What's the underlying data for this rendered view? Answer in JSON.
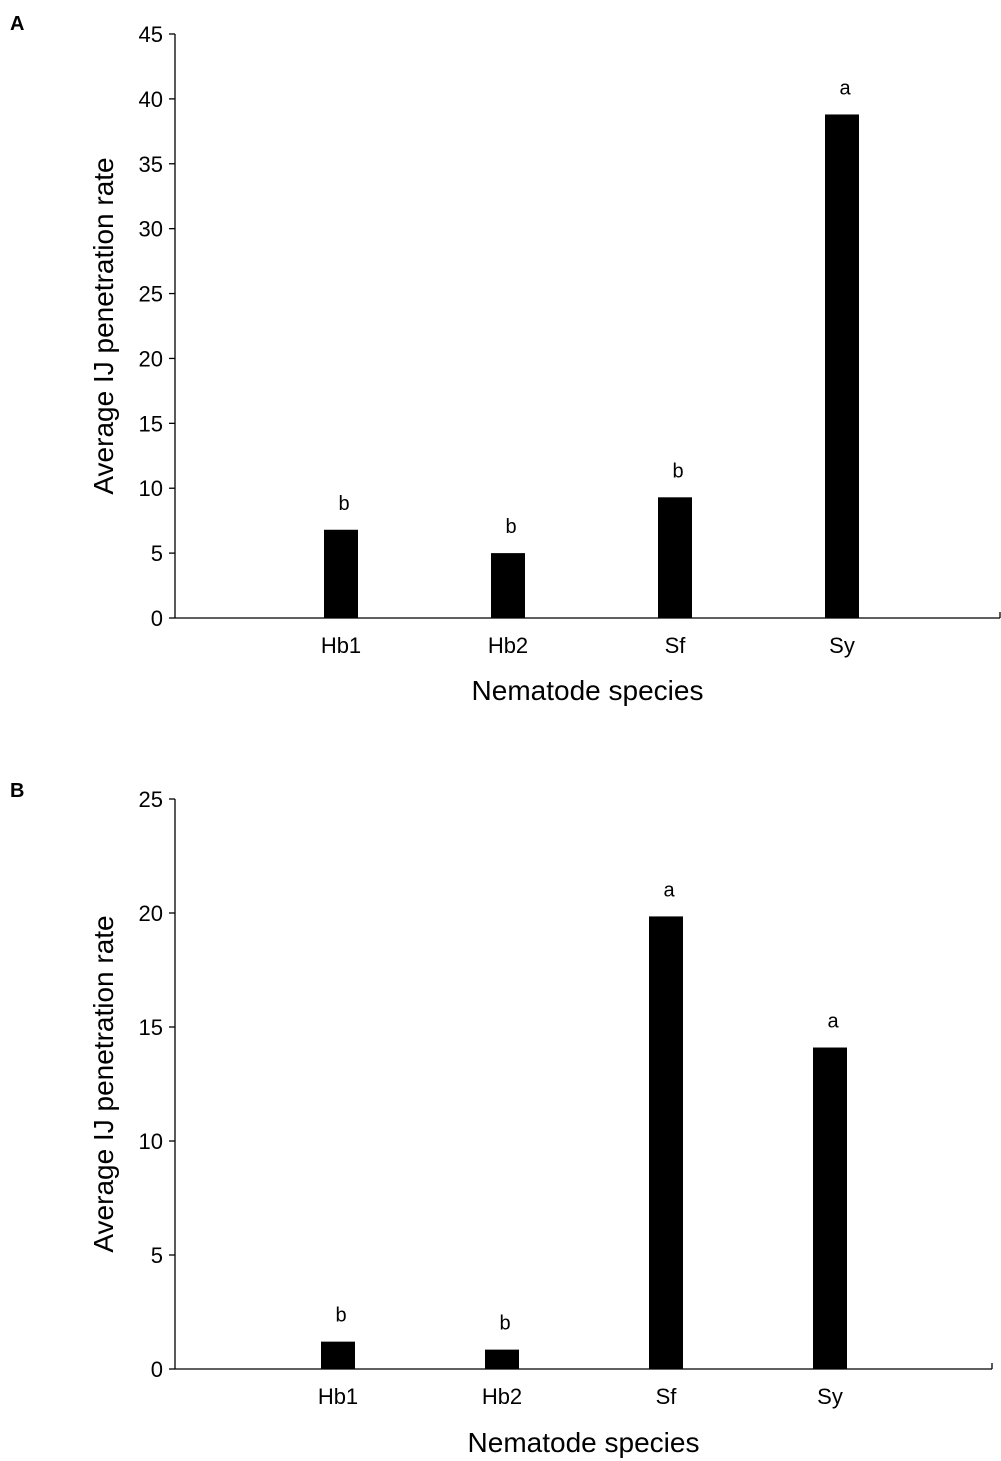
{
  "chart_data": [
    {
      "type": "bar",
      "panel": "A",
      "categories": [
        "Hb1",
        "Hb2",
        "Sf",
        "Sy"
      ],
      "values": [
        6.8,
        5.0,
        9.3,
        38.8
      ],
      "significance": [
        "b",
        "b",
        "b",
        "a"
      ],
      "xlabel": "Nematode species",
      "ylabel": "Average IJ penetration rate",
      "ylim": [
        0,
        45
      ],
      "yticks": [
        0,
        5,
        10,
        15,
        20,
        25,
        30,
        35,
        40,
        45
      ],
      "grid": false,
      "legend": "none",
      "bar_color": "#000000"
    },
    {
      "type": "bar",
      "panel": "B",
      "categories": [
        "Hb1",
        "Hb2",
        "Sf",
        "Sy"
      ],
      "values": [
        1.2,
        0.85,
        19.85,
        14.1
      ],
      "significance": [
        "b",
        "b",
        "a",
        "a"
      ],
      "xlabel": "Nematode species",
      "ylabel": "Average IJ penetration rate",
      "ylim": [
        0,
        25
      ],
      "yticks": [
        0,
        5,
        10,
        15,
        20,
        25
      ],
      "grid": false,
      "legend": "none",
      "bar_color": "#000000"
    }
  ]
}
